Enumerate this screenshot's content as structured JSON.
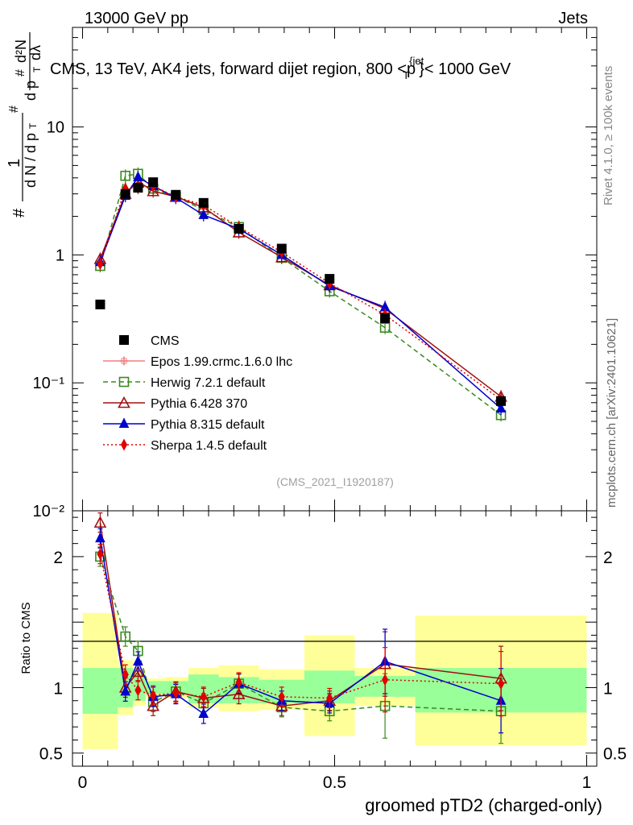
{
  "header": {
    "left": "13000 GeV pp",
    "right": "Jets"
  },
  "side": {
    "rivet": "Rivet 4.1.0, ≥ 100k events",
    "mcplots": "mcplots.cern.ch [arXiv:2401.10621]"
  },
  "chart_data": {
    "type": "line",
    "title": "CMS, 13 TeV, AK4 jets, forward dijet region, 800 <p_T^{jet}< 1000 GeV",
    "xlabel": "groomed pTD2 (charged-only)",
    "ylabel_main": "1/(dN/dp_T) · d²N/(dp_T dλ)",
    "ylabel_ratio": "Ratio to CMS",
    "analysis_id": "(CMS_2021_I1920187)",
    "xlim": [
      -0.02,
      1.02
    ],
    "ylim_main": [
      0.01,
      60
    ],
    "ylim_ratio": [
      0.4,
      2.35
    ],
    "x_ticks": [
      {
        "value": 0,
        "label": "0"
      },
      {
        "value": 0.5,
        "label": "0.5"
      },
      {
        "value": 1,
        "label": "1"
      }
    ],
    "main_y_ticks": [
      {
        "value": 10,
        "label": "10"
      },
      {
        "value": 1,
        "label": "1"
      },
      {
        "value": 0.1,
        "label": "10⁻¹"
      },
      {
        "value": 0.01,
        "label": "10⁻²"
      }
    ],
    "ratio_y_ticks": [
      {
        "value": 2,
        "label": "2"
      },
      {
        "value": 1,
        "label": "1"
      },
      {
        "value": 0.5,
        "label": "0.5"
      }
    ],
    "bins": [
      {
        "lo": 0.0,
        "hi": 0.07,
        "inner": [
          0.8,
          1.15
        ],
        "outer": [
          0.53,
          1.57
        ]
      },
      {
        "lo": 0.07,
        "hi": 0.1,
        "inner": [
          0.85,
          1.15
        ],
        "outer": [
          0.79,
          1.21
        ]
      },
      {
        "lo": 0.1,
        "hi": 0.125,
        "inner": [
          0.9,
          1.1
        ],
        "outer": [
          0.86,
          1.14
        ]
      },
      {
        "lo": 0.125,
        "hi": 0.16,
        "inner": [
          0.95,
          1.05
        ],
        "outer": [
          0.93,
          1.07
        ]
      },
      {
        "lo": 0.16,
        "hi": 0.21,
        "inner": [
          0.95,
          1.05
        ],
        "outer": [
          0.92,
          1.08
        ]
      },
      {
        "lo": 0.21,
        "hi": 0.27,
        "inner": [
          0.88,
          1.1
        ],
        "outer": [
          0.85,
          1.15
        ]
      },
      {
        "lo": 0.27,
        "hi": 0.35,
        "inner": [
          0.88,
          1.08
        ],
        "outer": [
          0.82,
          1.17
        ]
      },
      {
        "lo": 0.35,
        "hi": 0.44,
        "inner": [
          0.88,
          1.06
        ],
        "outer": [
          0.83,
          1.14
        ]
      },
      {
        "lo": 0.44,
        "hi": 0.54,
        "inner": [
          0.88,
          1.13
        ],
        "outer": [
          0.63,
          1.4
        ]
      },
      {
        "lo": 0.54,
        "hi": 0.66,
        "inner": [
          0.93,
          1.09
        ],
        "outer": [
          0.86,
          1.15
        ]
      },
      {
        "lo": 0.66,
        "hi": 1.0,
        "inner": [
          0.81,
          1.15
        ],
        "outer": [
          0.56,
          1.55
        ]
      }
    ],
    "data": {
      "name": "CMS",
      "x": [
        0.035,
        0.085,
        0.11,
        0.14,
        0.185,
        0.24,
        0.31,
        0.395,
        0.49,
        0.6,
        0.83
      ],
      "y": [
        0.41,
        3.0,
        3.35,
        3.7,
        2.95,
        2.55,
        1.6,
        1.12,
        0.65,
        0.32,
        0.072
      ]
    },
    "series": [
      {
        "name": "Epos 1.99.crmc.1.6.0 lhc",
        "color": "#f08080",
        "marker": "cross",
        "dashed": false,
        "dotted": false,
        "x": [],
        "y": [],
        "ratio": []
      },
      {
        "name": "Herwig 7.2.1 default",
        "color": "#3a8a1f",
        "marker": "open-square",
        "dashed": true,
        "dotted": false,
        "x": [
          0.035,
          0.085,
          0.11,
          0.14,
          0.185,
          0.24,
          0.31,
          0.395,
          0.49,
          0.6,
          0.83
        ],
        "y": [
          0.82,
          4.15,
          4.3,
          3.3,
          2.85,
          2.25,
          1.65,
          0.95,
          0.52,
          0.27,
          0.056
        ],
        "ratio": [
          2.0,
          1.39,
          1.28,
          0.89,
          0.97,
          0.88,
          1.03,
          0.85,
          0.82,
          0.86,
          0.82
        ]
      },
      {
        "name": "Pythia 6.428 370",
        "color": "#a01010",
        "marker": "open-triangle",
        "dashed": false,
        "dotted": false,
        "x": [
          0.035,
          0.085,
          0.11,
          0.14,
          0.185,
          0.24,
          0.31,
          0.395,
          0.49,
          0.6,
          0.83
        ],
        "y": [
          0.93,
          3.0,
          3.75,
          3.15,
          2.85,
          2.35,
          1.5,
          0.96,
          0.58,
          0.38,
          0.078
        ],
        "ratio": [
          2.26,
          1.0,
          1.12,
          0.86,
          0.97,
          0.92,
          0.95,
          0.86,
          0.9,
          1.18,
          1.07
        ]
      },
      {
        "name": "Pythia 8.315 default",
        "color": "#0000cc",
        "marker": "filled-triangle",
        "dashed": false,
        "dotted": false,
        "x": [
          0.035,
          0.085,
          0.11,
          0.14,
          0.185,
          0.24,
          0.31,
          0.395,
          0.49,
          0.6,
          0.83
        ],
        "y": [
          0.88,
          2.9,
          4.05,
          3.45,
          2.8,
          2.05,
          1.6,
          1.0,
          0.57,
          0.39,
          0.063
        ],
        "ratio": [
          2.14,
          0.97,
          1.2,
          0.93,
          0.95,
          0.8,
          1.03,
          0.9,
          0.88,
          1.2,
          0.9
        ]
      },
      {
        "name": "Sherpa 1.4.5 default",
        "color": "#e00000",
        "marker": "filled-diamond",
        "dashed": false,
        "dotted": true,
        "x": [
          0.035,
          0.085,
          0.11,
          0.14,
          0.185,
          0.24,
          0.31,
          0.395,
          0.49,
          0.6,
          0.83
        ],
        "y": [
          0.85,
          3.3,
          3.35,
          3.45,
          2.85,
          2.45,
          1.65,
          1.05,
          0.6,
          0.34,
          0.074
        ],
        "ratio": [
          2.02,
          1.1,
          0.98,
          0.94,
          0.96,
          0.93,
          1.04,
          0.93,
          0.92,
          1.06,
          1.03
        ]
      }
    ]
  }
}
